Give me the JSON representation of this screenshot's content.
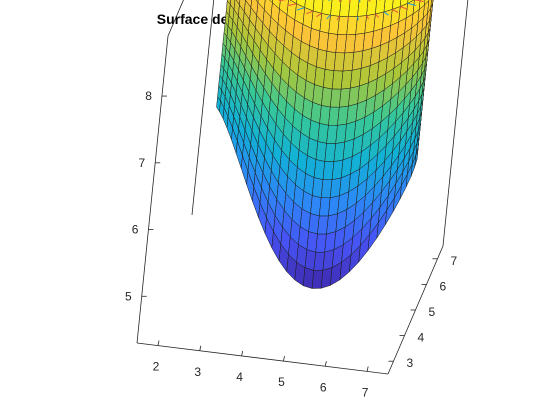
{
  "chart_data": {
    "type": "surface",
    "title": "Surface de Bezier avec Faceted Shading",
    "xlabel": "",
    "ylabel": "",
    "zlabel": "",
    "xlim": [
      1.5,
      7.5
    ],
    "ylim": [
      2.5,
      7.5
    ],
    "zlim": [
      4.3,
      8.9
    ],
    "x_ticks": [
      2,
      3,
      4,
      5,
      6,
      7
    ],
    "y_ticks": [
      3,
      4,
      5,
      6,
      7
    ],
    "z_ticks": [
      5,
      6,
      7,
      8
    ],
    "x_tick_labels": [
      "2",
      "3",
      "4",
      "5",
      "6",
      "7"
    ],
    "y_tick_labels": [
      "3",
      "4",
      "5",
      "6",
      "7"
    ],
    "z_tick_labels": [
      "5",
      "6",
      "7",
      "8"
    ],
    "shading": "faceted",
    "colormap": "parula",
    "normals_shown": true,
    "curve_base": [
      [
        2.0,
        6.6
      ],
      [
        2.4,
        6.2
      ],
      [
        3.5,
        5.0
      ],
      [
        4.6,
        4.0
      ],
      [
        5.6,
        4.7
      ],
      [
        6.6,
        5.2
      ],
      [
        7.2,
        6.0
      ],
      [
        6.8,
        6.7
      ]
    ],
    "z_bottom_start": 6.3,
    "z_bottom_end": 6.0,
    "z_bottom_min": 4.5,
    "z_top": 8.85,
    "colors": {
      "axis": "#262626",
      "edge": "#1a1a1a",
      "normals_low": "#1f9fd8",
      "normals_high": "#e8563a"
    }
  }
}
